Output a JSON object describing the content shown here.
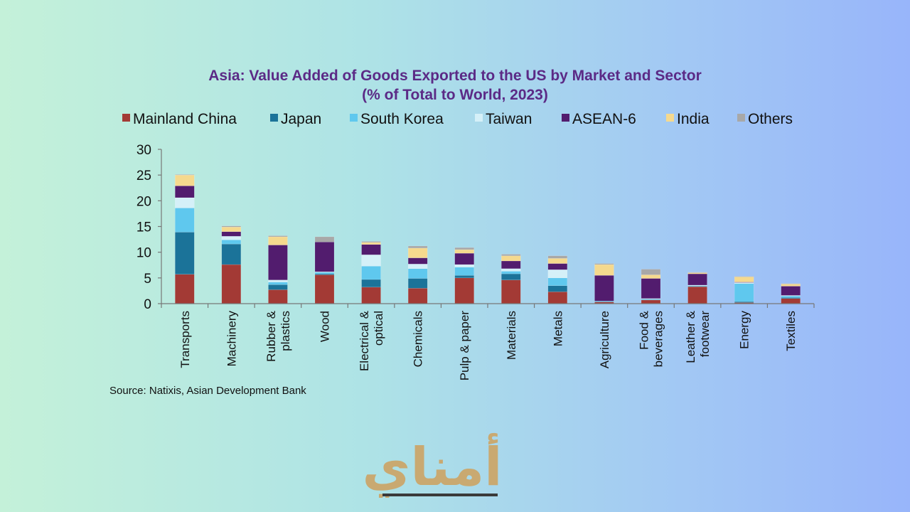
{
  "chart_data": {
    "type": "bar",
    "stacked": true,
    "title": "Asia: Value Added of Goods Exported to the US by Market and Sector",
    "subtitle": "(% of Total to World, 2023)",
    "xlabel": "",
    "ylabel": "",
    "ylim": [
      0,
      30
    ],
    "yticks": [
      0,
      5,
      10,
      15,
      20,
      25,
      30
    ],
    "grid": false,
    "legend_position": "top",
    "categories": [
      [
        "Transports"
      ],
      [
        "Machinery"
      ],
      [
        "Rubber &",
        "plastics"
      ],
      [
        "Wood"
      ],
      [
        "Electrical &",
        "optical"
      ],
      [
        "Chemicals"
      ],
      [
        "Pulp & paper"
      ],
      [
        "Materials"
      ],
      [
        "Metals"
      ],
      [
        "Agriculture"
      ],
      [
        "Food &",
        "beverages"
      ],
      [
        "Leather &",
        "footwear"
      ],
      [
        "Energy"
      ],
      [
        "Textiles"
      ]
    ],
    "series": [
      {
        "name": "Mainland China",
        "color": "#a33a35",
        "values": [
          5.7,
          7.6,
          2.7,
          5.6,
          3.2,
          3.0,
          5.0,
          4.6,
          2.3,
          0.3,
          0.7,
          3.3,
          0.2,
          1.0
        ]
      },
      {
        "name": "Japan",
        "color": "#1b7399",
        "values": [
          8.2,
          4.0,
          1.0,
          0.2,
          1.5,
          1.9,
          0.5,
          1.2,
          1.2,
          0.1,
          0.1,
          0.1,
          0.2,
          0.2
        ]
      },
      {
        "name": "South Korea",
        "color": "#5fc8ee",
        "values": [
          4.7,
          0.8,
          0.5,
          0.3,
          2.6,
          1.9,
          1.6,
          0.5,
          1.5,
          0.1,
          0.1,
          0.1,
          3.5,
          0.3
        ]
      },
      {
        "name": "Taiwan",
        "color": "#d5f0f8",
        "values": [
          2.0,
          0.7,
          0.4,
          0.1,
          2.2,
          0.9,
          0.5,
          0.5,
          1.6,
          0.0,
          0.1,
          0.1,
          0.2,
          0.1
        ]
      },
      {
        "name": "ASEAN-6",
        "color": "#521c6e",
        "values": [
          2.3,
          0.9,
          6.8,
          5.8,
          2.0,
          1.2,
          2.2,
          1.5,
          1.2,
          5.0,
          3.9,
          2.2,
          0.1,
          1.8
        ]
      },
      {
        "name": "India",
        "color": "#f5d98e",
        "values": [
          2.1,
          0.9,
          1.6,
          0.0,
          0.4,
          1.9,
          0.7,
          1.0,
          1.0,
          2.1,
          0.7,
          0.2,
          1.0,
          0.4
        ]
      },
      {
        "name": "Others",
        "color": "#a8a8a8",
        "values": [
          0.1,
          0.2,
          0.2,
          1.0,
          0.2,
          0.4,
          0.4,
          0.3,
          0.5,
          0.2,
          1.1,
          0.1,
          0.1,
          0.1
        ]
      }
    ],
    "source": "Source: Natixis, Asian Development Bank"
  },
  "logo": {
    "text": "أمناي",
    "color": "#c9a971",
    "underline_color": "#3a3a3a"
  }
}
